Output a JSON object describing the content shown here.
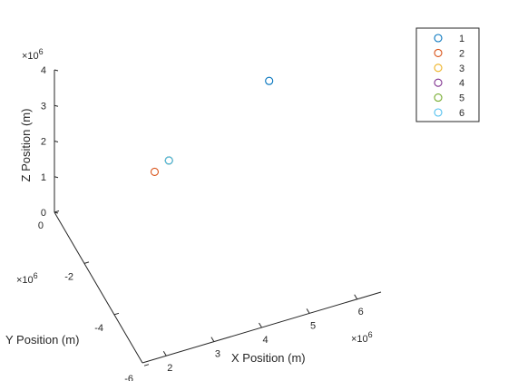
{
  "chart_data": {
    "type": "scatter",
    "title": "",
    "xlabel": "X Position (m)",
    "ylabel": "Y Position (m)",
    "zlabel": "Z Position (m)",
    "x_exponent": "×10",
    "y_exponent": "×10",
    "z_exponent": "×10",
    "exponent_power": "6",
    "x_ticks": [
      "2",
      "3",
      "4",
      "5",
      "6"
    ],
    "y_ticks": [
      "0",
      "-2",
      "-4",
      "-6"
    ],
    "z_ticks": [
      "0",
      "1",
      "2",
      "3",
      "4"
    ],
    "xlim": [
      1.5,
      6.5
    ],
    "ylim": [
      -6.5,
      0.5
    ],
    "zlim": [
      0,
      4
    ],
    "grid": false,
    "legend_position": "top-right",
    "marker": "circle-open",
    "series": [
      {
        "name": "1",
        "color": "#0072BD",
        "x": 6.0,
        "y": 0.0,
        "z": 1.9
      },
      {
        "name": "2",
        "color": "#D95319",
        "x": 3.6,
        "y": 0.0,
        "z": 0.3
      },
      {
        "name": "3",
        "color": "#EDB120",
        "x": 3.9,
        "y": 0.0,
        "z": 0.5
      },
      {
        "name": "4",
        "color": "#7E2F8E",
        "x": 3.9,
        "y": 0.0,
        "z": 0.5
      },
      {
        "name": "5",
        "color": "#77AC30",
        "x": 3.9,
        "y": 0.0,
        "z": 0.5
      },
      {
        "name": "6",
        "color": "#4DBEEE",
        "x": 3.9,
        "y": 0.0,
        "z": 0.5
      }
    ]
  }
}
